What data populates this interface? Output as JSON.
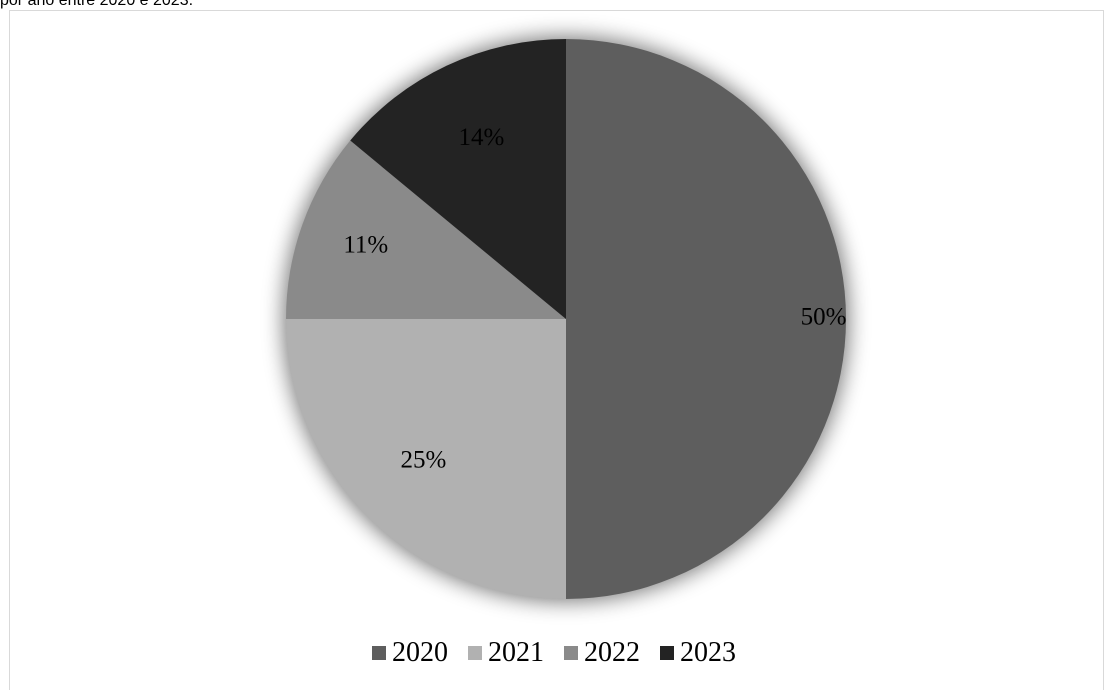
{
  "caption": "por ano entre 2020 e 2023.",
  "chart_data": {
    "type": "pie",
    "title": "",
    "categories": [
      "2020",
      "2021",
      "2022",
      "2023"
    ],
    "values": [
      50,
      25,
      11,
      14
    ],
    "data_labels": [
      "50%",
      "25%",
      "11%",
      "14%"
    ],
    "colors": [
      "#5e5e5e",
      "#b1b1b1",
      "#8a8a8a",
      "#232323"
    ],
    "legend_position": "bottom",
    "start_angle": "top, clockwise"
  }
}
